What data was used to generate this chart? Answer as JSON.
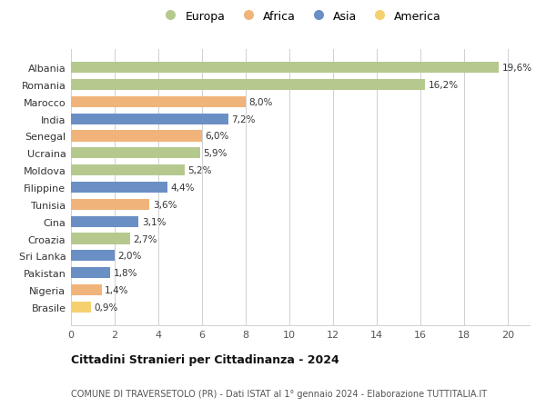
{
  "countries": [
    "Albania",
    "Romania",
    "Marocco",
    "India",
    "Senegal",
    "Ucraina",
    "Moldova",
    "Filippine",
    "Tunisia",
    "Cina",
    "Croazia",
    "Sri Lanka",
    "Pakistan",
    "Nigeria",
    "Brasile"
  ],
  "values": [
    19.6,
    16.2,
    8.0,
    7.2,
    6.0,
    5.9,
    5.2,
    4.4,
    3.6,
    3.1,
    2.7,
    2.0,
    1.8,
    1.4,
    0.9
  ],
  "labels": [
    "19,6%",
    "16,2%",
    "8,0%",
    "7,2%",
    "6,0%",
    "5,9%",
    "5,2%",
    "4,4%",
    "3,6%",
    "3,1%",
    "2,7%",
    "2,0%",
    "1,8%",
    "1,4%",
    "0,9%"
  ],
  "continents": [
    "Europa",
    "Europa",
    "Africa",
    "Asia",
    "Africa",
    "Europa",
    "Europa",
    "Asia",
    "Africa",
    "Asia",
    "Europa",
    "Asia",
    "Asia",
    "Africa",
    "America"
  ],
  "continent_colors": {
    "Europa": "#b5c98e",
    "Africa": "#f0b47a",
    "Asia": "#6a8fc4",
    "America": "#f5d06e"
  },
  "legend_order": [
    "Europa",
    "Africa",
    "Asia",
    "America"
  ],
  "title": "Cittadini Stranieri per Cittadinanza - 2024",
  "subtitle": "COMUNE DI TRAVERSETOLO (PR) - Dati ISTAT al 1° gennaio 2024 - Elaborazione TUTTITALIA.IT",
  "xlim": [
    0,
    21
  ],
  "xticks": [
    0,
    2,
    4,
    6,
    8,
    10,
    12,
    14,
    16,
    18,
    20
  ],
  "background_color": "#ffffff",
  "grid_color": "#d0d0d0",
  "bar_height": 0.65
}
